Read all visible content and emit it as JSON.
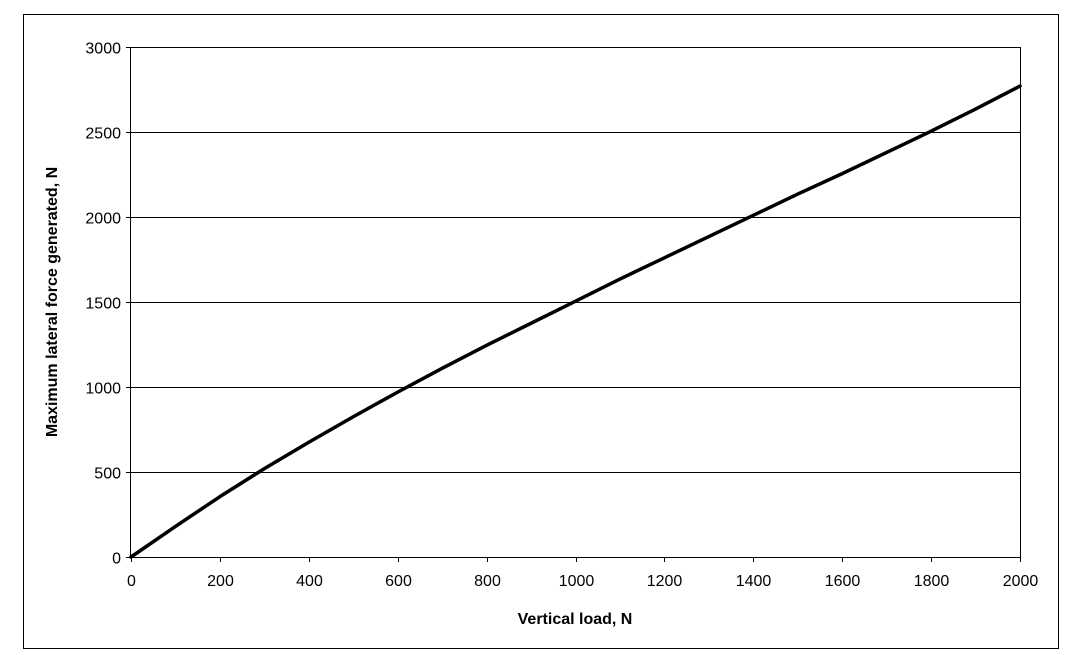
{
  "chart_data": {
    "type": "line",
    "title": "",
    "xlabel": "Vertical load, N",
    "ylabel": "Maximum lateral force generated, N",
    "xlim": [
      0,
      2000
    ],
    "ylim": [
      0,
      3000
    ],
    "x_ticks": [
      "0",
      "200",
      "400",
      "600",
      "800",
      "1000",
      "1200",
      "1400",
      "1600",
      "1800",
      "2000"
    ],
    "y_ticks": [
      "0",
      "500",
      "1000",
      "1500",
      "2000",
      "2500",
      "3000"
    ],
    "grid": "horizontal",
    "legend": "none",
    "series": [
      {
        "color": "#000000",
        "x": [
          0,
          100,
          200,
          300,
          400,
          500,
          600,
          700,
          800,
          900,
          1000,
          1100,
          1200,
          1300,
          1400,
          1500,
          1600,
          1700,
          1800,
          1900,
          2000
        ],
        "y": [
          0,
          180,
          355,
          520,
          675,
          825,
          970,
          1110,
          1245,
          1375,
          1505,
          1635,
          1760,
          1885,
          2010,
          2135,
          2255,
          2380,
          2505,
          2635,
          2770
        ]
      }
    ]
  }
}
